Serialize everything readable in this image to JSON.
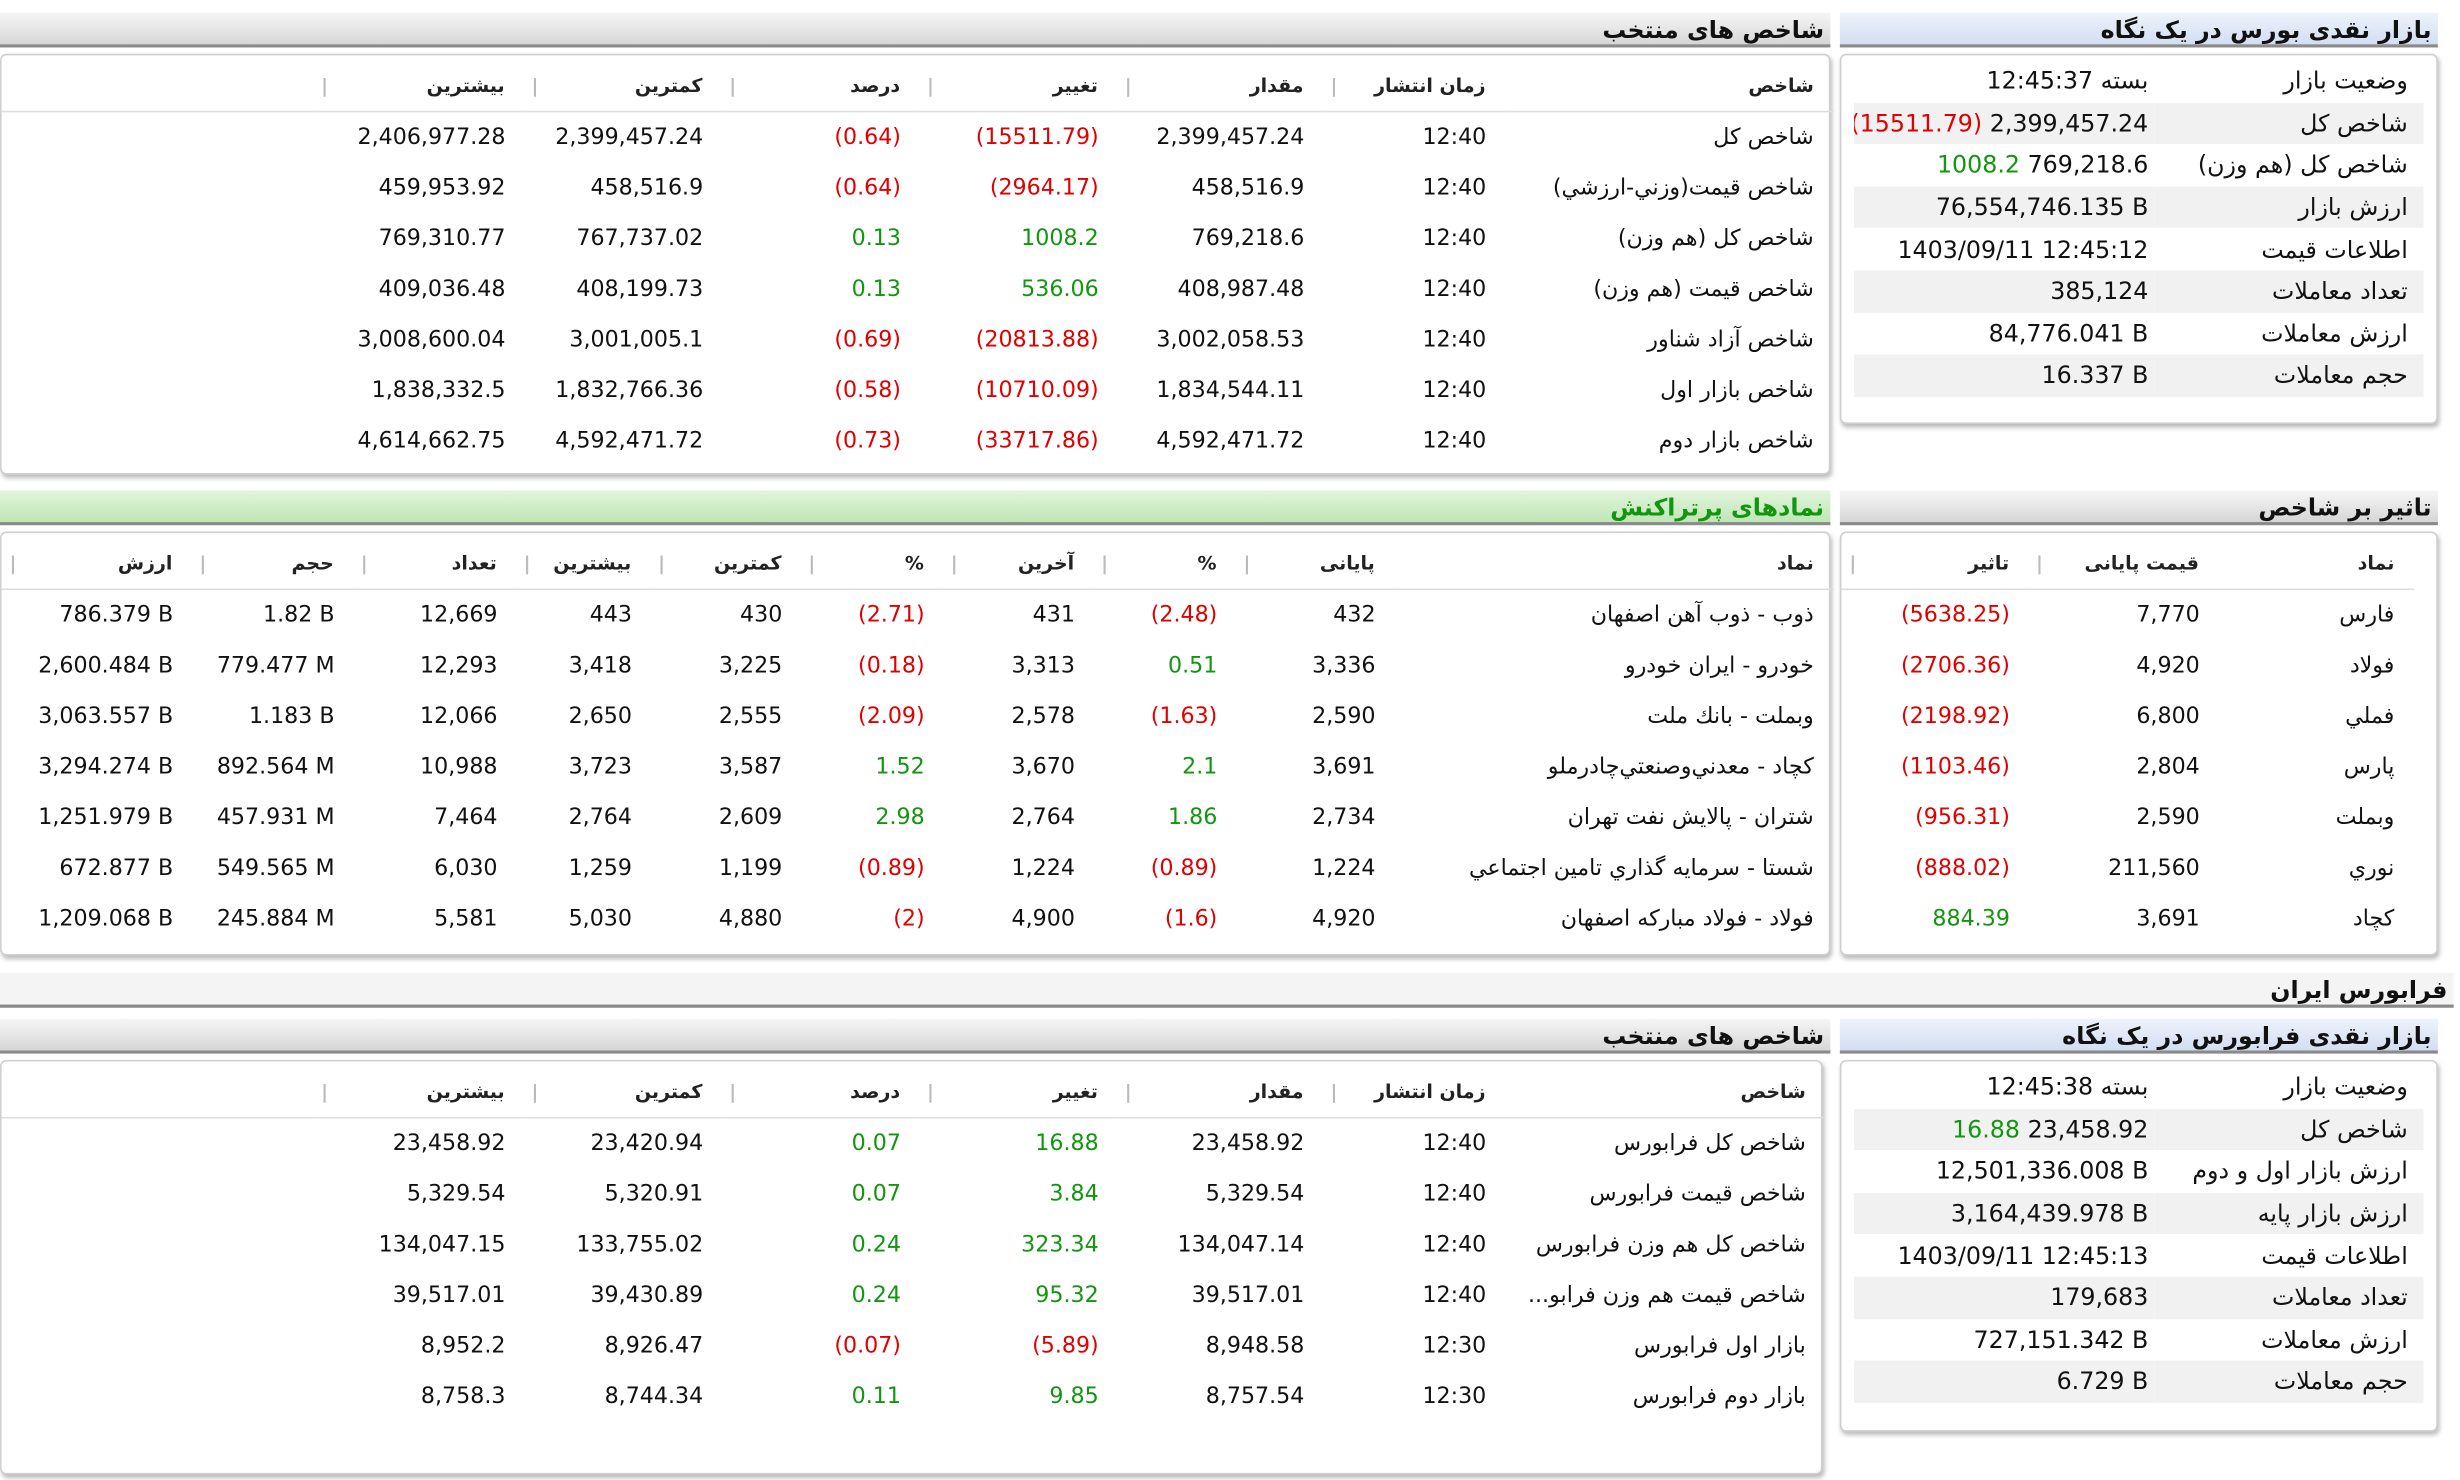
{
  "bourse": {
    "summary": {
      "title": "بازار نقدی بورس در یک نگاه",
      "rows": [
        [
          "وضعیت بازار",
          "بسته 12:45:37"
        ],
        [
          "شاخص کل",
          "2,399,457.24",
          "(15511.79)"
        ],
        [
          "شاخص کل (هم وزن)",
          "769,218.6",
          "1008.2"
        ],
        [
          "ارزش بازار",
          "76,554,746.135 B"
        ],
        [
          "اطلاعات قیمت",
          "1403/09/11 12:45:12"
        ],
        [
          "تعداد معاملات",
          "385,124"
        ],
        [
          "ارزش معاملات",
          "84,776.041 B"
        ],
        [
          "حجم معاملات",
          "16.337 B"
        ]
      ]
    },
    "indices": {
      "title": "شاخص های منتخب",
      "headers": [
        "شاخص",
        "زمان انتشار",
        "مقدار",
        "تغییر",
        "درصد",
        "کمترین",
        "بیشترین"
      ],
      "rows": [
        [
          "شاخص کل",
          "12:40",
          "2,399,457.24",
          "(15511.79)",
          "(0.64)",
          "2,399,457.24",
          "2,406,977.28"
        ],
        [
          "شاخص قيمت(وزني-ارزشي)",
          "12:40",
          "458,516.9",
          "(2964.17)",
          "(0.64)",
          "458,516.9",
          "459,953.92"
        ],
        [
          "شاخص کل (هم وزن)",
          "12:40",
          "769,218.6",
          "1008.2",
          "0.13",
          "767,737.02",
          "769,310.77"
        ],
        [
          "شاخص قیمت (هم وزن)",
          "12:40",
          "408,987.48",
          "536.06",
          "0.13",
          "408,199.73",
          "409,036.48"
        ],
        [
          "شاخص آزاد شناور",
          "12:40",
          "3,002,058.53",
          "(20813.88)",
          "(0.69)",
          "3,001,005.1",
          "3,008,600.04"
        ],
        [
          "شاخص بازار اول",
          "12:40",
          "1,834,544.11",
          "(10710.09)",
          "(0.58)",
          "1,832,766.36",
          "1,838,332.5"
        ],
        [
          "شاخص بازار دوم",
          "12:40",
          "4,592,471.72",
          "(33717.86)",
          "(0.73)",
          "4,592,471.72",
          "4,614,662.75"
        ]
      ]
    },
    "impact": {
      "title": "تاثیر بر شاخص",
      "headers": [
        "نماد",
        "قیمت پایانی",
        "تاثیر"
      ],
      "rows": [
        [
          "فارس",
          "7,770",
          "(5638.25)"
        ],
        [
          "فولاد",
          "4,920",
          "(2706.36)"
        ],
        [
          "فملي",
          "6,800",
          "(2198.92)"
        ],
        [
          "پارس",
          "2,804",
          "(1103.46)"
        ],
        [
          "وبملت",
          "2,590",
          "(956.31)"
        ],
        [
          "نوري",
          "211,560",
          "(888.02)"
        ],
        [
          "کچاد",
          "3,691",
          "884.39"
        ]
      ]
    },
    "active": {
      "title": "نمادهای پرتراکنش",
      "headers": [
        "نماد",
        "پایانی",
        "%",
        "آخرین",
        "%",
        "کمترین",
        "بیشترین",
        "تعداد",
        "حجم",
        "ارزش"
      ],
      "rows": [
        [
          "ذوب - ذوب آهن اصفهان",
          "432",
          "(2.48)",
          "431",
          "(2.71)",
          "430",
          "443",
          "12,669",
          "1.82 B",
          "786.379 B"
        ],
        [
          "خودرو - ایران خودرو",
          "3,336",
          "0.51",
          "3,313",
          "(0.18)",
          "3,225",
          "3,418",
          "12,293",
          "779.477 M",
          "2,600.484 B"
        ],
        [
          "وبملت - بانك ملت",
          "2,590",
          "(1.63)",
          "2,578",
          "(2.09)",
          "2,555",
          "2,650",
          "12,066",
          "1.183 B",
          "3,063.557 B"
        ],
        [
          "کچاد - معدني‌وصنعتي‌چادرملو",
          "3,691",
          "2.1",
          "3,670",
          "1.52",
          "3,587",
          "3,723",
          "10,988",
          "892.564 M",
          "3,294.274 B"
        ],
        [
          "شتران - پالايش نفت تهران",
          "2,734",
          "1.86",
          "2,764",
          "2.98",
          "2,609",
          "2,764",
          "7,464",
          "457.931 M",
          "1,251.979 B"
        ],
        [
          "شستا - سرمايه گذاري تامين اجتماعي",
          "1,224",
          "(0.89)",
          "1,224",
          "(0.89)",
          "1,199",
          "1,259",
          "6,030",
          "549.565 M",
          "672.877 B"
        ],
        [
          "فولاد - فولاد مباركه اصفهان",
          "4,920",
          "(1.6)",
          "4,900",
          "(2)",
          "4,880",
          "5,030",
          "5,581",
          "245.884 M",
          "1,209.068 B"
        ]
      ]
    }
  },
  "farabourse": {
    "heading": "فرابورس ایران",
    "summary": {
      "title": "بازار نقدی فرابورس در یک نگاه",
      "rows": [
        [
          "وضعیت بازار",
          "بسته 12:45:38"
        ],
        [
          "شاخص کل",
          "23,458.92",
          "16.88"
        ],
        [
          "ارزش بازار اول و دوم",
          "12,501,336.008 B"
        ],
        [
          "ارزش بازار پایه",
          "3,164,439.978 B"
        ],
        [
          "اطلاعات قیمت",
          "1403/09/11 12:45:13"
        ],
        [
          "تعداد معاملات",
          "179,683"
        ],
        [
          "ارزش معاملات",
          "727,151.342 B"
        ],
        [
          "حجم معاملات",
          "6.729 B"
        ]
      ]
    },
    "indices": {
      "title": "شاخص های منتخب",
      "headers": [
        "شاخص",
        "زمان انتشار",
        "مقدار",
        "تغییر",
        "درصد",
        "کمترین",
        "بیشترین"
      ],
      "rows": [
        [
          "شاخص کل فرابورس",
          "12:40",
          "23,458.92",
          "16.88",
          "0.07",
          "23,420.94",
          "23,458.92"
        ],
        [
          "شاخص قیمت فرابورس",
          "12:40",
          "5,329.54",
          "3.84",
          "0.07",
          "5,320.91",
          "5,329.54"
        ],
        [
          "شاخص کل هم وزن فرابورس",
          "12:40",
          "134,047.14",
          "323.34",
          "0.24",
          "133,755.02",
          "134,047.15"
        ],
        [
          "شاخص قیمت هم وزن فرابو...",
          "12:40",
          "39,517.01",
          "95.32",
          "0.24",
          "39,430.89",
          "39,517.01"
        ],
        [
          "بازار اول فرابورس",
          "12:30",
          "8,948.58",
          "(5.89)",
          "(0.07)",
          "8,926.47",
          "8,952.2"
        ],
        [
          "بازار دوم فرابورس",
          "12:30",
          "8,757.54",
          "9.85",
          "0.11",
          "8,744.34",
          "8,758.3"
        ]
      ]
    }
  }
}
